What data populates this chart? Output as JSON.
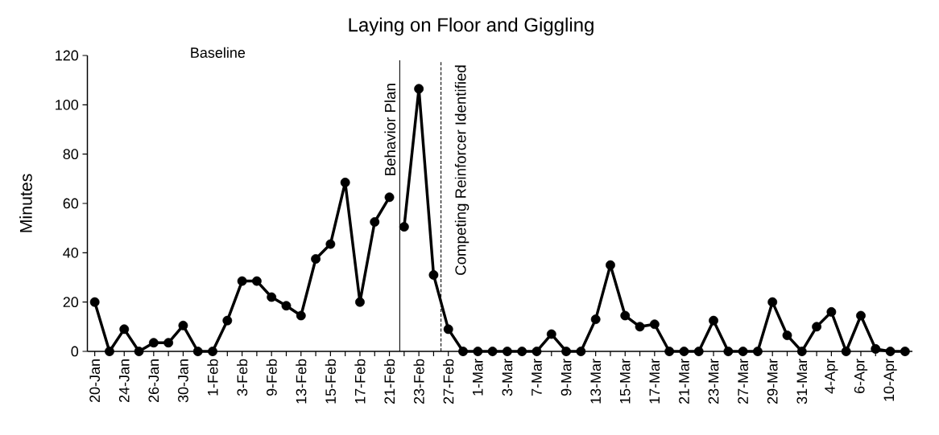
{
  "chart_data": {
    "type": "line",
    "title": "Laying on Floor and Giggling",
    "ylabel": "Minutes",
    "categories": [
      "20-Jan",
      null,
      "24-Jan",
      null,
      "26-Jan",
      null,
      "30-Jan",
      null,
      "1-Feb",
      null,
      "3-Feb",
      null,
      "9-Feb",
      null,
      "13-Feb",
      null,
      "15-Feb",
      null,
      "17-Feb",
      null,
      "21-Feb",
      null,
      "23-Feb",
      null,
      "27-Feb",
      null,
      "1-Mar",
      null,
      "3-Mar",
      null,
      "7-Mar",
      null,
      "9-Mar",
      null,
      "13-Mar",
      null,
      "15-Mar",
      null,
      "17-Mar",
      null,
      "21-Mar",
      null,
      "23-Mar",
      null,
      "27-Mar",
      null,
      "29-Mar",
      null,
      "31-Mar",
      null,
      "4-Apr",
      null,
      "6-Apr",
      null,
      "10-Apr",
      null
    ],
    "series": [
      {
        "color": "#000000",
        "values": [
          20,
          0,
          9,
          0,
          3.5,
          3.5,
          10.5,
          0,
          0,
          12.5,
          28.5,
          28.5,
          22,
          18.5,
          14.5,
          37.5,
          43.5,
          68.5,
          20,
          52.5,
          62.5,
          null,
          null,
          null,
          null,
          null,
          null,
          null,
          null,
          null,
          null,
          null,
          null,
          null,
          null,
          null,
          null,
          null,
          null,
          null,
          null,
          null,
          null,
          null,
          null,
          null,
          null,
          null,
          null,
          null,
          null,
          null,
          null,
          null,
          null,
          null
        ]
      },
      {
        "color": "#000000",
        "values": [
          null,
          null,
          null,
          null,
          null,
          null,
          null,
          null,
          null,
          null,
          null,
          null,
          null,
          null,
          null,
          null,
          null,
          null,
          null,
          null,
          null,
          50.5,
          106.5,
          31,
          9,
          0,
          0,
          0,
          0,
          0,
          0,
          7,
          0,
          0,
          13,
          35,
          14.5,
          10,
          11,
          0,
          0,
          0,
          12.5,
          0,
          0,
          0,
          20,
          6.5,
          0,
          10,
          16,
          0,
          14.5,
          1,
          0,
          0
        ]
      }
    ],
    "ylim": [
      0,
      120
    ],
    "yticks": [
      0,
      20,
      40,
      60,
      80,
      100,
      120
    ],
    "marker": "circle",
    "line_style": "solid",
    "annotations": [
      "Baseline",
      "Behavior Plan",
      "Competing Reinforcer Identified"
    ]
  }
}
